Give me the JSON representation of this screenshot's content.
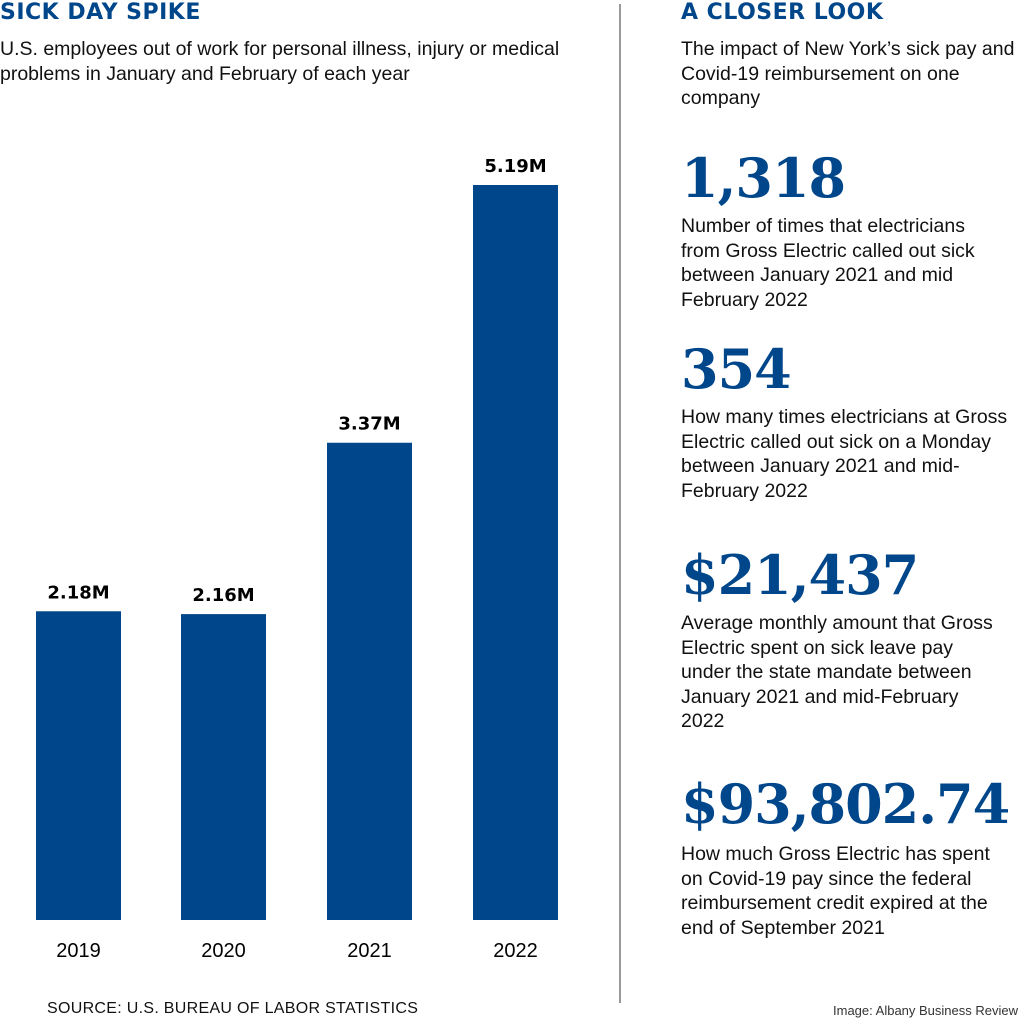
{
  "left": {
    "title": "SICK DAY SPIKE",
    "subtitle": "U.S. employees out of work for personal illness, injury or medical problems in January and February of each year",
    "source": "SOURCE: U.S. BUREAU OF LABOR STATISTICS"
  },
  "chart_data": {
    "type": "bar",
    "categories": [
      "2019",
      "2020",
      "2021",
      "2022"
    ],
    "values": [
      2.18,
      2.16,
      3.37,
      5.19
    ],
    "labels": [
      "2.18M",
      "2.16M",
      "3.37M",
      "5.19M"
    ],
    "unit": "M",
    "ylim": [
      0,
      5.19
    ],
    "grid": false,
    "color": "#00468b"
  },
  "right": {
    "title": "A CLOSER LOOK",
    "subtitle": "The impact of New York’s sick pay and Covid-19 reimbursement on one company",
    "stats": [
      {
        "value": "1,318",
        "text": "Number of times that electricians from Gross Electric called out sick between January 2021 and mid February 2022"
      },
      {
        "value": "354",
        "text": "How many times electricians at Gross Electric called out sick on a Monday between January 2021 and mid-February 2022"
      },
      {
        "value": "$21,437",
        "text": "Average monthly amount that Gross Electric spent on sick leave pay under the state mandate between January 2021 and mid-February 2022"
      },
      {
        "value": "$93,802.74",
        "text": "How much Gross Electric has spent on Covid-19 pay since the federal reimbursement credit expired at the end of September 2021"
      }
    ]
  },
  "credit": "Image: Albany Business Review"
}
